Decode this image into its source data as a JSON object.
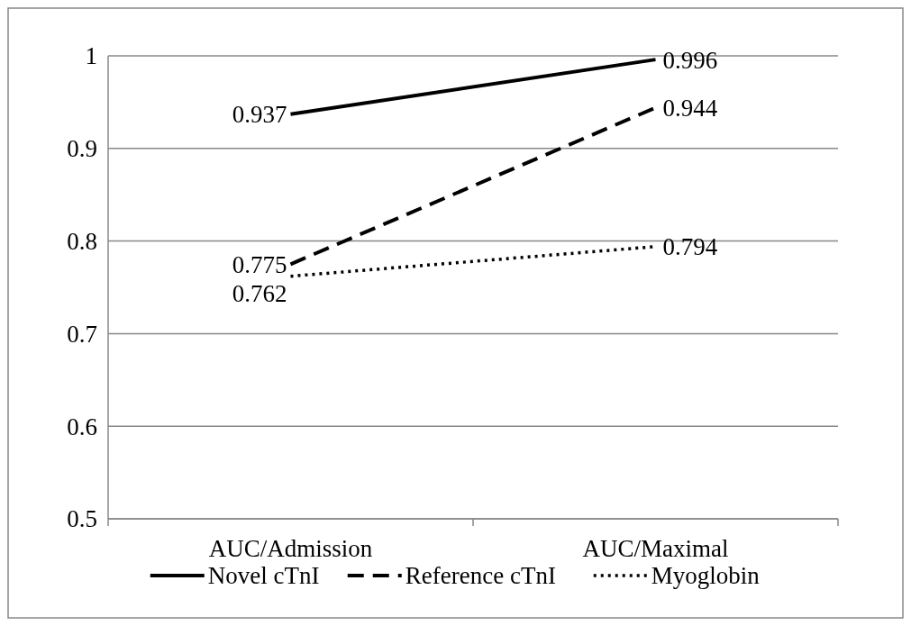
{
  "chart_data": {
    "type": "line",
    "categories": [
      "AUC/Admission",
      "AUC/Maximal"
    ],
    "series": [
      {
        "name": "Novel cTnI",
        "color": "#000000",
        "values": [
          0.937,
          0.996
        ],
        "line_style": "solid"
      },
      {
        "name": "Reference cTnI",
        "color": "#000000",
        "values": [
          0.775,
          0.944
        ],
        "line_style": "dashed"
      },
      {
        "name": "Myoglobin",
        "color": "#000000",
        "values": [
          0.762,
          0.794
        ],
        "line_style": "dotted"
      }
    ],
    "ylim": [
      0.5,
      1
    ],
    "yticks": [
      0.5,
      0.6,
      0.7,
      0.8,
      0.9,
      1
    ],
    "grid": "y",
    "legend": "bottom",
    "data_labels": true,
    "marker": "none"
  }
}
